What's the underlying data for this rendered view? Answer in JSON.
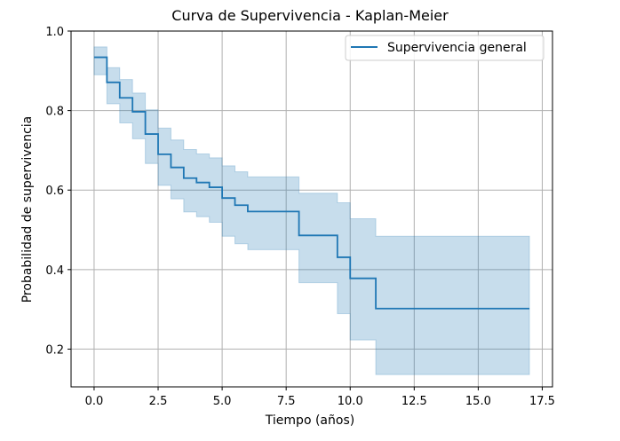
{
  "chart_data": {
    "type": "line",
    "style": "step-post",
    "title": "Curva de Supervivencia - Kaplan-Meier",
    "xlabel": "Tiempo (años)",
    "ylabel": "Probabilidad de supervivencia",
    "xlim": [
      -0.9,
      17.9
    ],
    "ylim": [
      0.105,
      1.0
    ],
    "xticks": [
      0.0,
      2.5,
      5.0,
      7.5,
      10.0,
      12.5,
      15.0,
      17.5
    ],
    "xtick_labels": [
      "0.0",
      "2.5",
      "5.0",
      "7.5",
      "10.0",
      "12.5",
      "15.0",
      "17.5"
    ],
    "yticks": [
      0.2,
      0.4,
      0.6,
      0.8,
      1.0
    ],
    "ytick_labels": [
      "0.2",
      "0.4",
      "0.6",
      "0.8",
      "1.0"
    ],
    "grid": true,
    "legend_position": "upper right",
    "line_color": "#1f77b4",
    "band_color": "#1f77b4",
    "series": [
      {
        "name": "Supervivencia general",
        "x": [
          0.0,
          0.5,
          1.0,
          1.5,
          2.0,
          2.5,
          3.0,
          3.5,
          4.0,
          4.5,
          5.0,
          5.5,
          6.0,
          8.0,
          9.5,
          10.0,
          11.0,
          17.0
        ],
        "y": [
          0.934,
          0.871,
          0.832,
          0.797,
          0.741,
          0.69,
          0.657,
          0.63,
          0.619,
          0.607,
          0.58,
          0.562,
          0.546,
          0.486,
          0.431,
          0.378,
          0.302,
          0.302
        ],
        "ci_lower": [
          0.89,
          0.817,
          0.769,
          0.729,
          0.667,
          0.612,
          0.578,
          0.545,
          0.533,
          0.519,
          0.484,
          0.465,
          0.45,
          0.367,
          0.289,
          0.223,
          0.136,
          0.136
        ],
        "ci_upper": [
          0.96,
          0.908,
          0.878,
          0.844,
          0.802,
          0.756,
          0.726,
          0.702,
          0.691,
          0.681,
          0.661,
          0.646,
          0.633,
          0.592,
          0.568,
          0.528,
          0.484,
          0.484
        ]
      }
    ]
  }
}
